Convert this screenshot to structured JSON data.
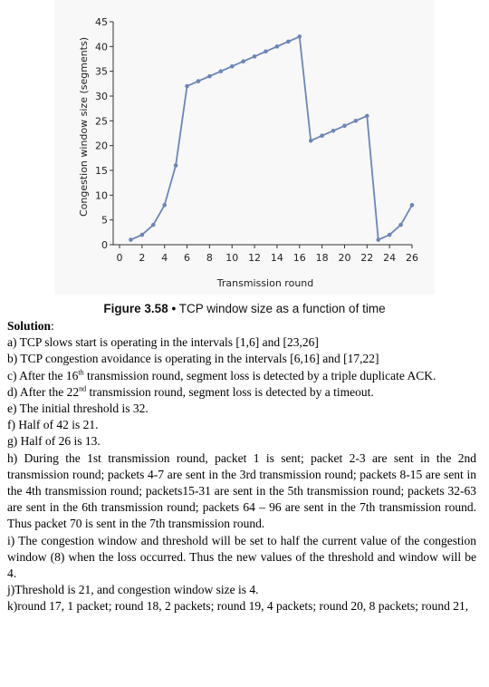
{
  "chart_data": {
    "type": "line",
    "xlabel": "Transmission round",
    "ylabel": "Congestion window size (segments)",
    "xlim": [
      0,
      26
    ],
    "ylim": [
      0,
      45
    ],
    "xticks": [
      0,
      2,
      4,
      6,
      8,
      10,
      12,
      14,
      16,
      18,
      20,
      22,
      24,
      26
    ],
    "yticks": [
      0,
      5,
      10,
      15,
      20,
      25,
      30,
      35,
      40,
      45
    ],
    "grid": false,
    "series": [
      {
        "color": "#6b86b8",
        "x": [
          1,
          2,
          3,
          4,
          5,
          6,
          7,
          8,
          9,
          10,
          11,
          12,
          13,
          14,
          15,
          16,
          17,
          18,
          19,
          20,
          21,
          22,
          23,
          24,
          25,
          26
        ],
        "y": [
          1,
          2,
          4,
          8,
          16,
          32,
          33,
          34,
          35,
          36,
          37,
          38,
          39,
          40,
          41,
          42,
          21,
          22,
          23,
          24,
          25,
          26,
          1,
          2,
          4,
          8
        ]
      }
    ]
  },
  "caption": {
    "figure": "Figure 3.58",
    "bullet": "•",
    "text": "TCP window size as a function of time"
  },
  "solution": {
    "heading": "Solution",
    "heading_suffix": ":",
    "a": "a) TCP slows start is operating in the intervals [1,6] and [23,26]",
    "b": "b) TCP congestion avoidance is operating in the intervals [6,16] and [17,22]",
    "c_pre": "c) After the 16",
    "c_sup": "th",
    "c_post": " transmission round, segment loss is detected by a triple duplicate ACK.",
    "d_pre": "d)   After the 22",
    "d_sup": "nd",
    "d_post": " transmission round, segment loss is detected by a timeout.",
    "e": "e)   The initial threshold is 32.",
    "f": "f)   Half of 42 is 21.",
    "g": "g)   Half of 26 is 13.",
    "h": "h)   During the 1st transmission round, packet 1 is sent; packet 2-3 are sent in the 2nd transmission round; packets 4-7 are sent in the 3rd transmission round; packets 8-15 are sent in the 4th transmission round; packets15-31 are sent in the 5th transmission round; packets 32-63 are sent in the 6th transmission round; packets 64 – 96 are sent in the 7th transmission round.   Thus packet 70 is sent in the 7th transmission round.",
    "i": "i) The congestion window and threshold will be set to half the current value of the congestion window (8) when the loss occurred. Thus the new values of the threshold and window will be 4.",
    "j": "j)Threshold is 21, and congestion window size is 4.",
    "k": "k)round 17, 1 packet; round 18, 2 packets; round 19, 4 packets; round 20, 8 packets; round 21,"
  }
}
